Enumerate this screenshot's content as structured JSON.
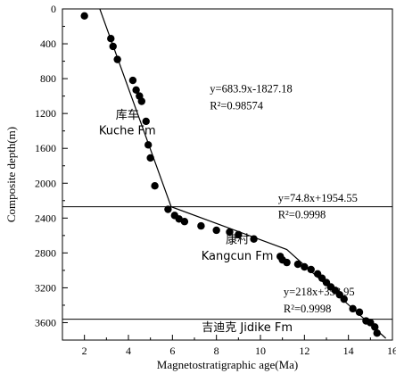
{
  "chart_data": {
    "type": "scatter",
    "xlabel": "Magnetostratigraphic age(Ma)",
    "ylabel": "Composite depth(m)",
    "xlim": [
      1,
      16
    ],
    "ylim": [
      3800,
      0
    ],
    "y_inverted": true,
    "x_ticks": [
      2,
      4,
      6,
      8,
      10,
      12,
      14,
      16
    ],
    "y_ticks": [
      0,
      400,
      800,
      1200,
      1600,
      2000,
      2400,
      2800,
      3200,
      3600
    ],
    "grid": false,
    "points": [
      {
        "x": 2.0,
        "y": 80
      },
      {
        "x": 3.2,
        "y": 340
      },
      {
        "x": 3.3,
        "y": 430
      },
      {
        "x": 3.5,
        "y": 580
      },
      {
        "x": 4.2,
        "y": 820
      },
      {
        "x": 4.35,
        "y": 930
      },
      {
        "x": 4.5,
        "y": 1000
      },
      {
        "x": 4.6,
        "y": 1060
      },
      {
        "x": 4.8,
        "y": 1290
      },
      {
        "x": 4.9,
        "y": 1560
      },
      {
        "x": 5.0,
        "y": 1710
      },
      {
        "x": 5.2,
        "y": 2030
      },
      {
        "x": 5.8,
        "y": 2300
      },
      {
        "x": 6.1,
        "y": 2370
      },
      {
        "x": 6.3,
        "y": 2410
      },
      {
        "x": 6.55,
        "y": 2440
      },
      {
        "x": 7.3,
        "y": 2490
      },
      {
        "x": 8.0,
        "y": 2540
      },
      {
        "x": 8.6,
        "y": 2560
      },
      {
        "x": 9.0,
        "y": 2590
      },
      {
        "x": 9.7,
        "y": 2640
      },
      {
        "x": 10.9,
        "y": 2840
      },
      {
        "x": 11.0,
        "y": 2880
      },
      {
        "x": 11.2,
        "y": 2910
      },
      {
        "x": 11.7,
        "y": 2930
      },
      {
        "x": 12.0,
        "y": 2960
      },
      {
        "x": 12.3,
        "y": 2990
      },
      {
        "x": 12.6,
        "y": 3040
      },
      {
        "x": 12.8,
        "y": 3090
      },
      {
        "x": 13.0,
        "y": 3140
      },
      {
        "x": 13.2,
        "y": 3190
      },
      {
        "x": 13.4,
        "y": 3230
      },
      {
        "x": 13.6,
        "y": 3280
      },
      {
        "x": 13.8,
        "y": 3330
      },
      {
        "x": 14.2,
        "y": 3440
      },
      {
        "x": 14.5,
        "y": 3480
      },
      {
        "x": 14.8,
        "y": 3580
      },
      {
        "x": 15.0,
        "y": 3600
      },
      {
        "x": 15.2,
        "y": 3650
      },
      {
        "x": 15.3,
        "y": 3720
      }
    ],
    "fit_line": [
      {
        "x": 2.7,
        "y": 0
      },
      {
        "x": 5.94,
        "y": 2270
      },
      {
        "x": 11.2,
        "y": 2760
      },
      {
        "x": 15.7,
        "y": 3780
      }
    ],
    "boundaries": [
      {
        "depth": 2270
      },
      {
        "depth": 3560
      }
    ],
    "annotations": [
      {
        "id": "eq1_line1",
        "text": "y=683.9x-1827.18",
        "x": 7.7,
        "y": 960
      },
      {
        "id": "eq1_line2",
        "text": "R²=0.98574",
        "x": 7.7,
        "y": 1150
      },
      {
        "id": "eq2_line1",
        "text": "y=74.8x+1954.55",
        "x": 10.8,
        "y": 2210
      },
      {
        "id": "eq2_line2",
        "text": "R²=0.9998",
        "x": 10.8,
        "y": 2400
      },
      {
        "id": "eq3_line1",
        "text": "y=218x+358.95",
        "x": 11.05,
        "y": 3290
      },
      {
        "id": "eq3_line2",
        "text": "R²=0.9998",
        "x": 11.05,
        "y": 3480
      },
      {
        "id": "fm1_cn",
        "text": "库车",
        "x": 3.95,
        "y": 1260
      },
      {
        "id": "fm1_en",
        "text": "Kuche Fm",
        "x": 3.95,
        "y": 1440
      },
      {
        "id": "fm2_cn",
        "text": "康村",
        "x": 8.95,
        "y": 2690
      },
      {
        "id": "fm2_en",
        "text": "Kangcun Fm",
        "x": 8.95,
        "y": 2880
      },
      {
        "id": "fm3",
        "text": "吉迪克 Jidike Fm",
        "x": 9.4,
        "y": 3700
      }
    ]
  }
}
